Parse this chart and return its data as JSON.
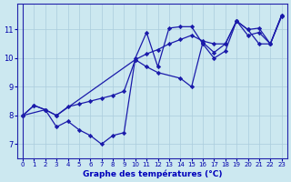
{
  "xlabel": "Graphe des températures (°C)",
  "x_ticks": [
    0,
    1,
    2,
    3,
    4,
    5,
    6,
    7,
    8,
    9,
    10,
    11,
    12,
    13,
    14,
    15,
    16,
    17,
    18,
    19,
    20,
    21,
    22,
    23
  ],
  "y_ticks": [
    7,
    8,
    9,
    10,
    11
  ],
  "ylim": [
    6.5,
    11.9
  ],
  "xlim": [
    -0.5,
    23.5
  ],
  "line1_x": [
    0,
    1,
    2,
    3,
    4,
    5,
    6,
    7,
    8,
    9,
    10,
    11,
    12,
    13,
    14,
    15,
    16,
    17,
    18,
    19,
    20,
    21,
    22,
    23
  ],
  "line1_y": [
    8.0,
    8.35,
    8.2,
    8.0,
    8.3,
    8.4,
    8.5,
    8.6,
    8.7,
    8.85,
    9.95,
    10.15,
    10.3,
    10.5,
    10.65,
    10.8,
    10.6,
    10.5,
    10.5,
    11.3,
    11.0,
    11.05,
    10.5,
    11.5
  ],
  "line2_x": [
    0,
    1,
    2,
    3,
    4,
    5,
    6,
    7,
    8,
    9,
    10,
    11,
    12,
    13,
    14,
    15,
    16,
    17,
    18,
    19,
    20,
    21,
    22,
    23
  ],
  "line2_y": [
    8.0,
    8.35,
    8.2,
    7.6,
    7.8,
    7.5,
    7.3,
    7.0,
    7.3,
    7.4,
    10.0,
    10.9,
    9.7,
    11.05,
    11.1,
    11.1,
    10.5,
    10.0,
    10.25,
    11.3,
    11.0,
    10.5,
    10.5,
    11.5
  ],
  "line3_x": [
    0,
    2,
    3,
    10,
    11,
    12,
    14,
    15,
    16,
    17,
    18,
    19,
    20,
    21,
    22,
    23
  ],
  "line3_y": [
    8.0,
    8.2,
    8.0,
    9.95,
    9.7,
    9.5,
    9.3,
    9.0,
    10.55,
    10.2,
    10.5,
    11.3,
    10.8,
    10.9,
    10.5,
    11.45
  ],
  "line_color": "#1a1aaa",
  "marker": "D",
  "markersize": 2.2,
  "linewidth": 0.9,
  "bg_color": "#cce8f0",
  "grid_color": "#aaccdd",
  "axis_color": "#2222aa",
  "label_color": "#0000bb",
  "tick_color": "#0000aa"
}
